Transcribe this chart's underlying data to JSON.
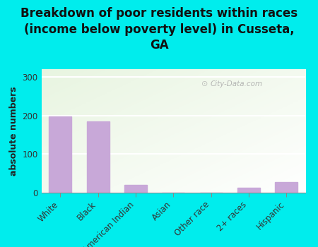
{
  "categories": [
    "White",
    "Black",
    "American Indian",
    "Asian",
    "Other race",
    "2+ races",
    "Hispanic"
  ],
  "values": [
    198,
    185,
    20,
    0,
    0,
    13,
    28
  ],
  "bar_color": "#c8a8d8",
  "title_line1": "Breakdown of poor residents within races",
  "title_line2": "(income below poverty level) in Cusseta,",
  "title_line3": "GA",
  "ylabel": "absolute numbers",
  "ylim": [
    0,
    320
  ],
  "yticks": [
    0,
    100,
    200,
    300
  ],
  "background_color": "#00eded",
  "watermark": "City-Data.com",
  "title_fontsize": 12,
  "ylabel_fontsize": 9,
  "tick_fontsize": 8.5
}
